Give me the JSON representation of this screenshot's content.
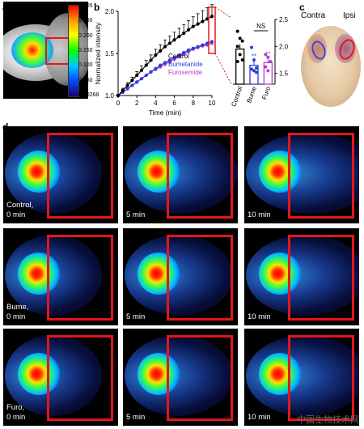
{
  "panels": {
    "a": "a",
    "b": "b",
    "c": "c",
    "d": "d"
  },
  "colorbar": {
    "ticks": [
      "0.305",
      "0.250",
      "0.200",
      "0.150",
      "0.100",
      "0.050",
      "0.00268"
    ]
  },
  "chart_data": [
    {
      "type": "line",
      "xlabel": "Time (min)",
      "ylabel": "Normalized intensity",
      "xlim": [
        0,
        10
      ],
      "ylim": [
        1.0,
        2.0
      ],
      "xticks": [
        "0",
        "2",
        "4",
        "6",
        "8",
        "10"
      ],
      "yticks": [
        "1.0",
        "1.5",
        "2.0"
      ],
      "x": [
        0,
        0.5,
        1,
        1.5,
        2,
        2.5,
        3,
        3.5,
        4,
        4.5,
        5,
        5.5,
        6,
        6.5,
        7,
        7.5,
        8,
        8.5,
        9,
        9.5,
        10
      ],
      "series": [
        {
          "name": "Control",
          "color": "#000000",
          "values": [
            1.0,
            1.06,
            1.12,
            1.18,
            1.24,
            1.3,
            1.36,
            1.42,
            1.48,
            1.53,
            1.58,
            1.62,
            1.66,
            1.7,
            1.74,
            1.78,
            1.82,
            1.85,
            1.88,
            1.91,
            1.94
          ]
        },
        {
          "name": "Bumetanide",
          "color": "#2b3fd6",
          "values": [
            1.0,
            1.04,
            1.08,
            1.12,
            1.16,
            1.2,
            1.24,
            1.28,
            1.32,
            1.36,
            1.39,
            1.42,
            1.45,
            1.48,
            1.51,
            1.54,
            1.56,
            1.58,
            1.6,
            1.62,
            1.64
          ]
        },
        {
          "name": "Furosemide",
          "color": "#b43bd6",
          "values": [
            1.0,
            1.04,
            1.08,
            1.12,
            1.16,
            1.2,
            1.24,
            1.28,
            1.31,
            1.34,
            1.37,
            1.4,
            1.43,
            1.46,
            1.49,
            1.52,
            1.55,
            1.57,
            1.59,
            1.6,
            1.62
          ]
        }
      ]
    },
    {
      "type": "bar",
      "categories": [
        "Control",
        "Bume",
        "Furo"
      ],
      "values": [
        1.95,
        1.65,
        1.7
      ],
      "colors": [
        "#000000",
        "#2b3fd6",
        "#b43bd6"
      ],
      "ylim": [
        1.3,
        2.5
      ],
      "yticks": [
        "1.5",
        "2.0",
        "2.5"
      ],
      "annotations": {
        "ns": "NS",
        "sig": [
          "**",
          "**"
        ]
      },
      "points": [
        [
          2.28,
          2.15,
          2.1,
          2.0,
          1.85,
          1.75,
          1.72
        ],
        [
          1.98,
          1.75,
          1.6,
          1.58,
          1.55,
          1.52
        ],
        [
          1.85,
          1.8,
          1.72,
          1.62,
          1.55
        ]
      ]
    }
  ],
  "brain": {
    "contra": "Contra",
    "ipsi": "Ipsi"
  },
  "grid": {
    "rows": [
      {
        "cond": "Control,"
      },
      {
        "cond": "Bume,"
      },
      {
        "cond": "Furo,"
      }
    ],
    "times": [
      "0 min",
      "5 min",
      "10 min"
    ]
  },
  "watermark": "中国生物技术网"
}
